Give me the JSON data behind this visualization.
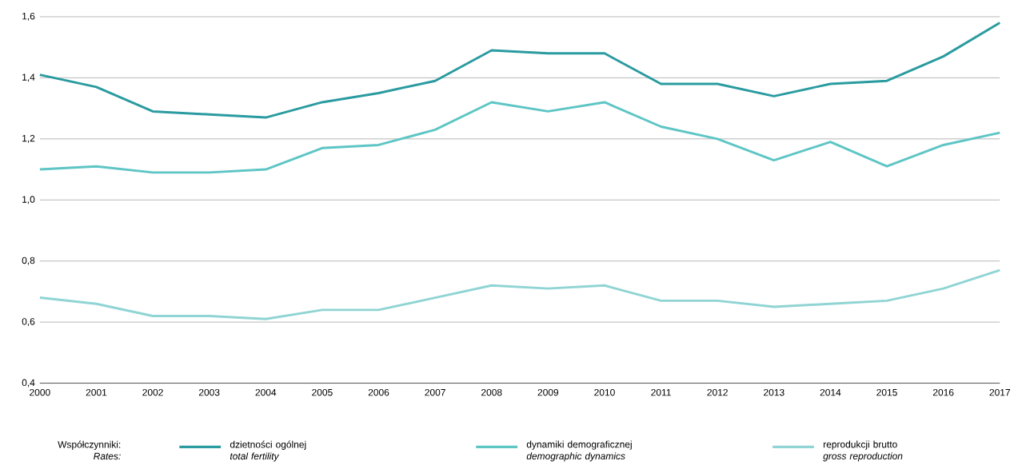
{
  "chart_data": {
    "type": "line",
    "x": [
      2000,
      2001,
      2002,
      2003,
      2004,
      2005,
      2006,
      2007,
      2008,
      2009,
      2010,
      2011,
      2012,
      2013,
      2014,
      2015,
      2016,
      2017
    ],
    "series": [
      {
        "name": "dzietności ogólnej *total fertility*",
        "color": "#2a9ba0",
        "values": [
          1.41,
          1.37,
          1.29,
          1.28,
          1.27,
          1.32,
          1.35,
          1.39,
          1.49,
          1.48,
          1.48,
          1.38,
          1.38,
          1.34,
          1.38,
          1.39,
          1.47,
          1.58
        ]
      },
      {
        "name": "dynamiki demograficznej *demographic dynamics*",
        "color": "#5ec5c5",
        "values": [
          1.1,
          1.11,
          1.09,
          1.09,
          1.1,
          1.17,
          1.18,
          1.23,
          1.32,
          1.29,
          1.32,
          1.24,
          1.2,
          1.13,
          1.19,
          1.11,
          1.18,
          1.22
        ]
      },
      {
        "name": "reprodukcji brutto *gross reproduction*",
        "color": "#90d4d4",
        "values": [
          0.68,
          0.66,
          0.62,
          0.62,
          0.61,
          0.64,
          0.64,
          0.68,
          0.72,
          0.71,
          0.72,
          0.67,
          0.67,
          0.65,
          0.66,
          0.67,
          0.71,
          0.77
        ]
      }
    ],
    "legend_title": "Współczynniki: *Rates:*",
    "xlim": [
      2000,
      2017
    ],
    "xticks": [
      2000,
      2001,
      2002,
      2003,
      2004,
      2005,
      2006,
      2007,
      2008,
      2009,
      2010,
      2011,
      2012,
      2013,
      2014,
      2015,
      2016,
      2017
    ],
    "ylim": [
      0.4,
      1.6
    ],
    "yticks": [
      {
        "value": 0.4,
        "label": "0,4"
      },
      {
        "value": 0.6,
        "label": "0,6"
      },
      {
        "value": 0.8,
        "label": "0,8"
      },
      {
        "value": 1.0,
        "label": "1,0"
      },
      {
        "value": 1.2,
        "label": "1,2"
      },
      {
        "value": 1.4,
        "label": "1,4"
      },
      {
        "value": 1.6,
        "label": "1,6"
      }
    ],
    "grid": "y",
    "legend": "bottom",
    "marker": "none",
    "line_style": "solid"
  }
}
